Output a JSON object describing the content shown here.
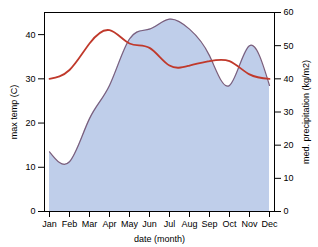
{
  "chart_data": {
    "type": "line",
    "categories": [
      "Jan",
      "Feb",
      "Mar",
      "Apr",
      "May",
      "Jun",
      "Jul",
      "Aug",
      "Sep",
      "Oct",
      "Nov",
      "Dec"
    ],
    "xlabel": "date (month)",
    "ylabel": "max temp (C)",
    "y2label": "med. precipitation (kg/m2)",
    "ylim": [
      0,
      45
    ],
    "yticks": [
      0,
      10,
      20,
      30,
      40
    ],
    "y2lim": [
      0,
      60
    ],
    "y2ticks": [
      0,
      10,
      20,
      30,
      40,
      50,
      60
    ],
    "series": [
      {
        "type": "line",
        "color": "#c0392b",
        "values": [
          30,
          32,
          38,
          41,
          38,
          37,
          33,
          33,
          34,
          34,
          31,
          30
        ]
      },
      {
        "type": "area",
        "axis": "y2",
        "color": "#b8c9e8",
        "values": [
          18,
          15,
          28,
          38,
          52,
          55,
          58,
          55,
          47,
          38,
          50,
          38
        ]
      },
      {
        "type": "line",
        "axis": "y2",
        "color": "#7b5e7b",
        "values": [
          18,
          15,
          28,
          38,
          52,
          55,
          58,
          55,
          47,
          38,
          50,
          38
        ]
      }
    ]
  }
}
